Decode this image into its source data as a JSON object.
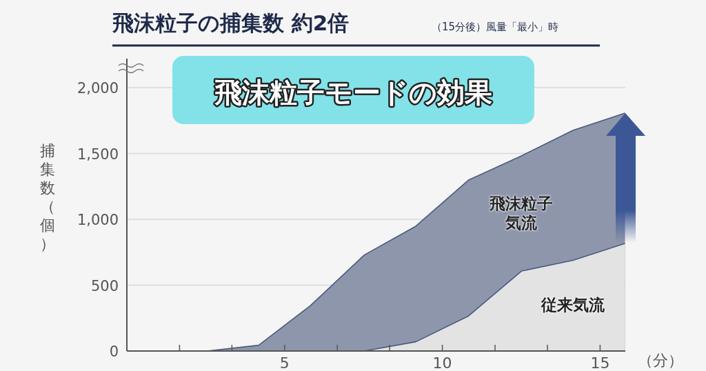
{
  "chart_data": {
    "type": "area",
    "title": "飛沫粒子の捕集数 約2倍",
    "subtitle": "（15分後）風量「最小」時",
    "xlabel": "（分）",
    "ylabel": "捕集数（個）",
    "annotations": [
      "飛沫粒子モードの効果"
    ],
    "x": [
      0,
      2.55,
      4.18,
      5.82,
      7.53,
      9.16,
      10.83,
      12.51,
      14.14,
      15.79
    ],
    "series": [
      {
        "name": "飛沫粒子気流",
        "color": "#8e96ab",
        "values": [
          0,
          0,
          44,
          345,
          730,
          948,
          1298,
          1482,
          1675,
          1806
        ]
      },
      {
        "name": "従来気流",
        "color": "#e3e3e3",
        "values": [
          0,
          0,
          0,
          0,
          0,
          70,
          266,
          607,
          689,
          817
        ]
      }
    ],
    "xlim": [
      0,
      15.8
    ],
    "ylim": [
      0,
      2220
    ],
    "xticks": [
      {
        "value": 1.67,
        "label": null
      },
      {
        "value": 3.33,
        "label": null
      },
      5,
      {
        "value": 6.67,
        "label": null
      },
      {
        "value": 8.33,
        "label": null
      },
      10,
      {
        "value": 11.67,
        "label": null
      },
      {
        "value": 13.33,
        "label": null
      },
      15
    ],
    "yticks": [
      0,
      500,
      {
        "value": 1000,
        "label": "1,000"
      },
      {
        "value": 1500,
        "label": "1,500"
      },
      {
        "value": 2000,
        "label": "2,000"
      }
    ],
    "grid": "y"
  }
}
